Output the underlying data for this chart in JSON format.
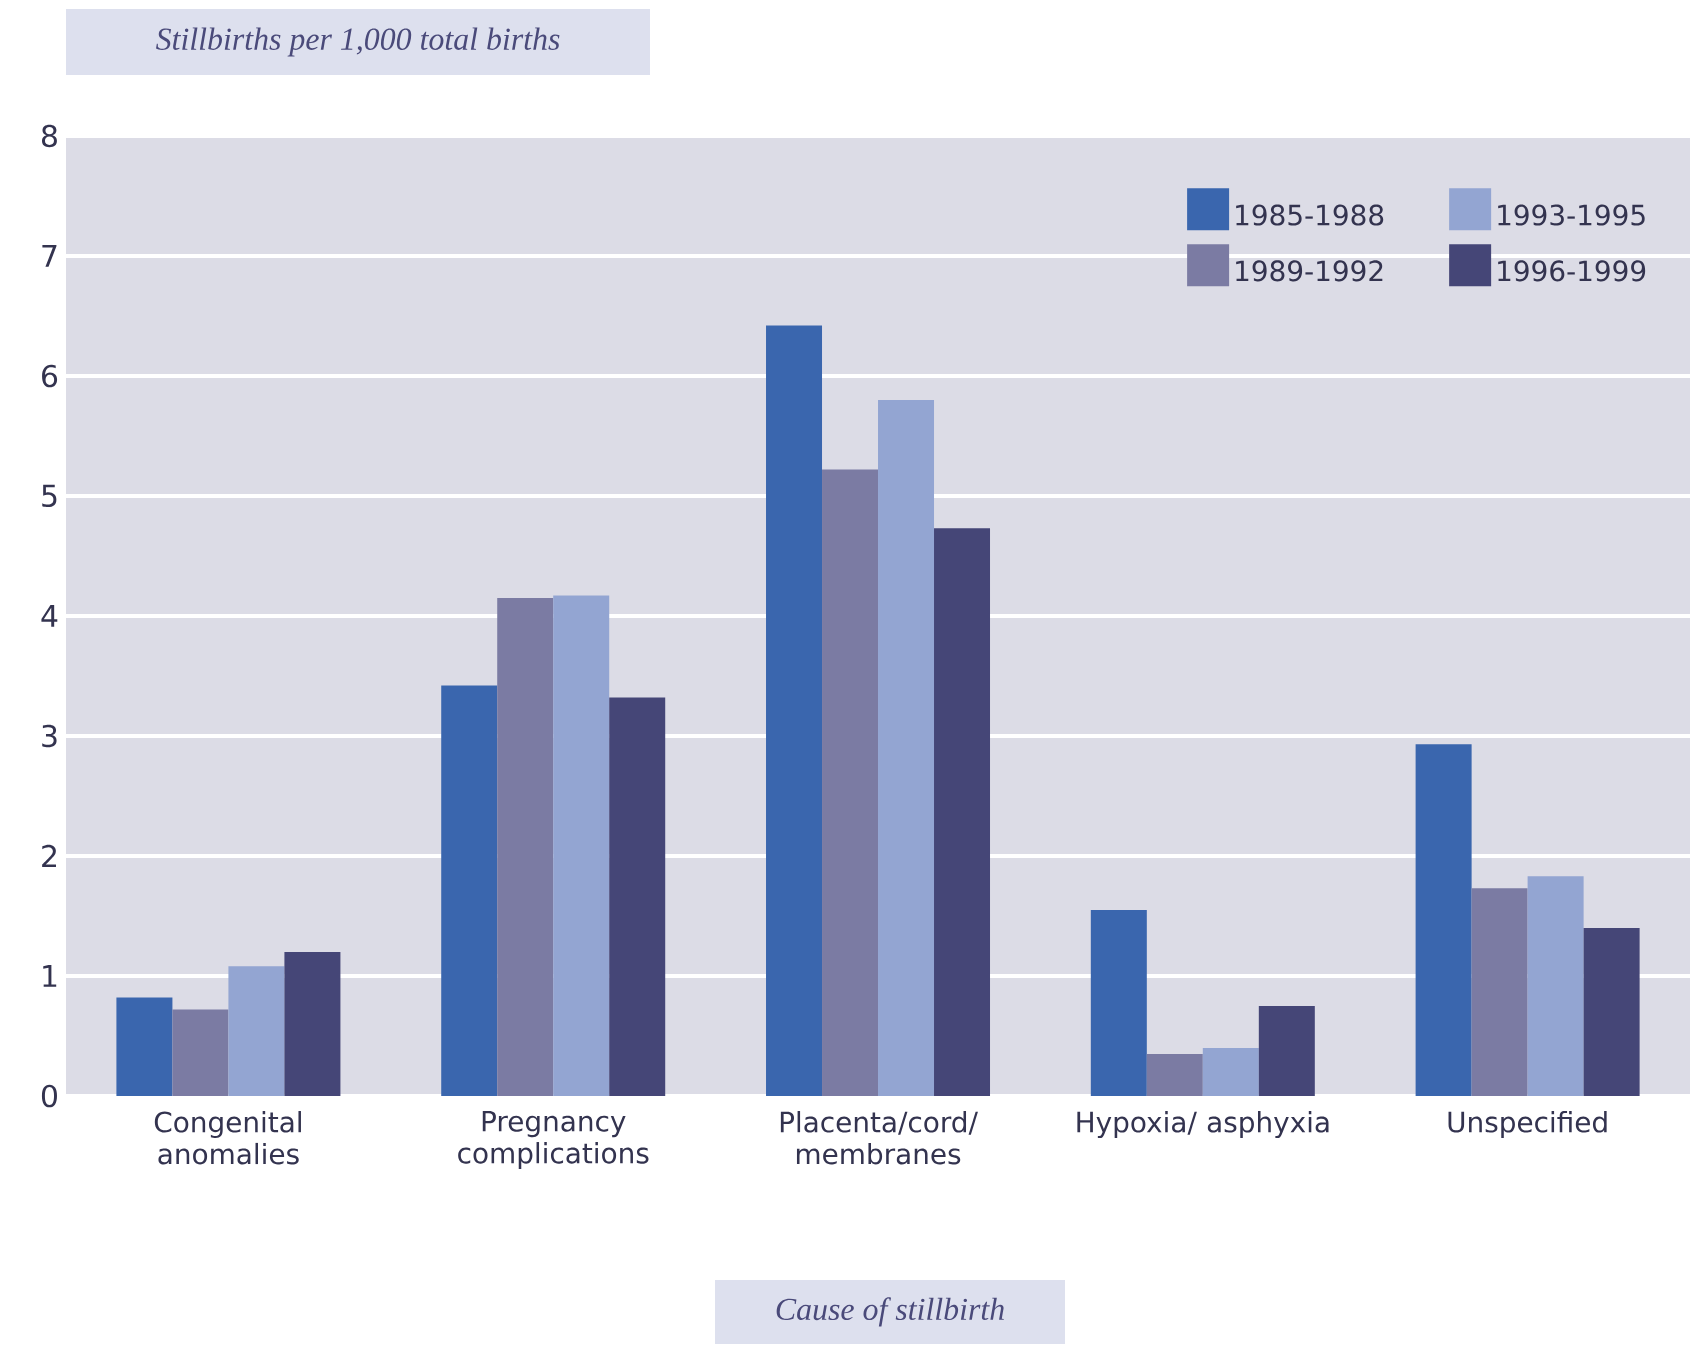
{
  "chart_data": {
    "type": "bar",
    "ylabel": "Stillbirths per 1,000 total births",
    "xlabel": "Cause of stillbirth",
    "categories": [
      "Congenital anomalies",
      "Pregnancy complications",
      "Placenta/cord/ membranes",
      "Hypoxia/ asphyxia",
      "Unspecified"
    ],
    "series": [
      {
        "name": "1985-1988",
        "color": "#3a66ae",
        "values": [
          0.82,
          3.42,
          6.42,
          1.55,
          2.93
        ]
      },
      {
        "name": "1989-1992",
        "color": "#7b7ba3",
        "values": [
          0.72,
          4.15,
          5.22,
          0.35,
          1.73
        ]
      },
      {
        "name": "1993-1995",
        "color": "#93a5d2",
        "values": [
          1.08,
          4.17,
          5.8,
          0.4,
          1.83
        ]
      },
      {
        "name": "1996-1999",
        "color": "#454677",
        "values": [
          1.2,
          3.32,
          4.73,
          0.75,
          1.4
        ]
      }
    ],
    "ylim": [
      0,
      8
    ],
    "yticks": [
      0,
      1,
      2,
      3,
      4,
      5,
      6,
      7,
      8
    ],
    "grid": "y",
    "legend": "top right"
  }
}
